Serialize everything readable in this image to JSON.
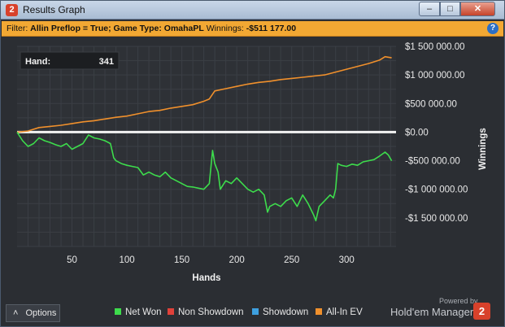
{
  "window": {
    "title": "Results Graph",
    "app_icon": "2",
    "min_glyph": "–",
    "max_glyph": "□",
    "close_glyph": "✕"
  },
  "filter": {
    "label": "Filter:",
    "text": "Allin Preflop = True; Game Type: OmahaPL",
    "winnings_label": "Winnings:",
    "winnings_value": "-$511 177.00",
    "help_glyph": "?"
  },
  "tooltip": {
    "label": "Hand:",
    "value": "341"
  },
  "bottom": {
    "options_label": "Options",
    "options_glyph": "˄",
    "legend": [
      {
        "label": "Net Won",
        "color": "#3ddc4c"
      },
      {
        "label": "Non Showdown",
        "color": "#e0413a"
      },
      {
        "label": "Showdown",
        "color": "#3ea0e0"
      },
      {
        "label": "All-In EV",
        "color": "#f0902c"
      }
    ],
    "powered_by": "Powered by",
    "brand": "Hold'em Manager",
    "brand_logo": "2"
  },
  "chart_data": {
    "type": "line",
    "xlabel": "Hands",
    "ylabel": "Winnings",
    "xlim": [
      0,
      345
    ],
    "ylim": [
      -2000000,
      1500000
    ],
    "x_ticks": [
      50,
      100,
      150,
      200,
      250,
      300
    ],
    "y_ticks": [
      1500000,
      1000000,
      500000,
      0,
      -500000,
      -1000000,
      -1500000
    ],
    "y_tick_labels": [
      "$1 500 000.00",
      "$1 000 000.00",
      "$500 000.00",
      "$0.00",
      "-$500 000.00",
      "-$1 000 000.00",
      "-$1 500 000.00"
    ],
    "grid": true,
    "zero_line": true,
    "series": [
      {
        "name": "All-In EV",
        "color": "#f0902c",
        "x": [
          0,
          10,
          20,
          30,
          40,
          50,
          60,
          70,
          80,
          90,
          100,
          110,
          120,
          130,
          140,
          150,
          160,
          170,
          175,
          180,
          190,
          200,
          210,
          220,
          230,
          240,
          250,
          260,
          270,
          280,
          290,
          300,
          310,
          320,
          330,
          335,
          341
        ],
        "y": [
          0,
          20000,
          80000,
          100000,
          120000,
          150000,
          180000,
          200000,
          230000,
          260000,
          280000,
          320000,
          360000,
          380000,
          420000,
          450000,
          480000,
          540000,
          580000,
          720000,
          760000,
          800000,
          840000,
          870000,
          890000,
          920000,
          940000,
          960000,
          980000,
          1000000,
          1050000,
          1100000,
          1150000,
          1200000,
          1260000,
          1320000,
          1300000
        ]
      },
      {
        "name": "Net Won",
        "color": "#3ddc4c",
        "x": [
          0,
          5,
          10,
          15,
          20,
          25,
          30,
          35,
          40,
          45,
          50,
          55,
          60,
          65,
          70,
          75,
          80,
          85,
          88,
          90,
          95,
          100,
          105,
          110,
          115,
          120,
          125,
          130,
          135,
          140,
          145,
          150,
          155,
          160,
          165,
          170,
          175,
          178,
          180,
          183,
          185,
          190,
          195,
          200,
          205,
          210,
          215,
          220,
          225,
          228,
          230,
          235,
          240,
          245,
          250,
          255,
          260,
          265,
          270,
          272,
          275,
          280,
          285,
          288,
          290,
          292,
          295,
          300,
          305,
          310,
          315,
          320,
          325,
          330,
          335,
          338,
          341
        ],
        "y": [
          0,
          -150000,
          -250000,
          -200000,
          -100000,
          -150000,
          -180000,
          -220000,
          -250000,
          -200000,
          -300000,
          -250000,
          -200000,
          -50000,
          -100000,
          -120000,
          -150000,
          -200000,
          -450000,
          -500000,
          -550000,
          -580000,
          -600000,
          -620000,
          -750000,
          -700000,
          -750000,
          -780000,
          -700000,
          -800000,
          -850000,
          -900000,
          -950000,
          -960000,
          -980000,
          -1000000,
          -900000,
          -320000,
          -550000,
          -700000,
          -1000000,
          -850000,
          -900000,
          -800000,
          -900000,
          -1000000,
          -1050000,
          -1000000,
          -1100000,
          -1400000,
          -1300000,
          -1250000,
          -1300000,
          -1200000,
          -1150000,
          -1300000,
          -1100000,
          -1250000,
          -1450000,
          -1550000,
          -1300000,
          -1200000,
          -1100000,
          -1150000,
          -1000000,
          -550000,
          -580000,
          -600000,
          -560000,
          -580000,
          -520000,
          -500000,
          -480000,
          -420000,
          -350000,
          -400000,
          -500000
        ]
      }
    ]
  }
}
